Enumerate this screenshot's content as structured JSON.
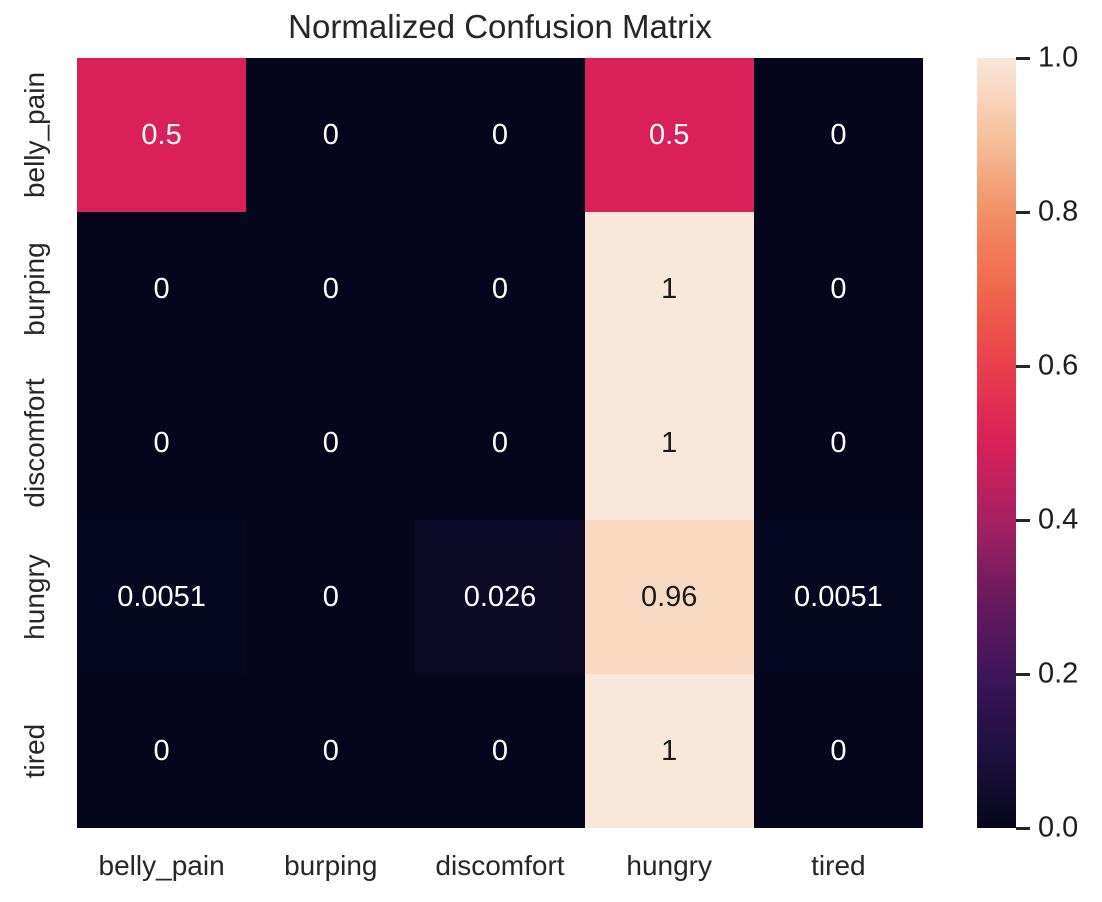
{
  "chart_data": {
    "type": "heatmap",
    "title": "Normalized Confusion Matrix",
    "x_categories": [
      "belly_pain",
      "burping",
      "discomfort",
      "hungry",
      "tired"
    ],
    "y_categories": [
      "belly_pain",
      "burping",
      "discomfort",
      "hungry",
      "tired"
    ],
    "values": [
      [
        0.5,
        0,
        0,
        0.5,
        0
      ],
      [
        0,
        0,
        0,
        1,
        0
      ],
      [
        0,
        0,
        0,
        1,
        0
      ],
      [
        0.0051,
        0,
        0.026,
        0.96,
        0.0051
      ],
      [
        0,
        0,
        0,
        1,
        0
      ]
    ],
    "cell_labels": [
      [
        "0.5",
        "0",
        "0",
        "0.5",
        "0"
      ],
      [
        "0",
        "0",
        "0",
        "1",
        "0"
      ],
      [
        "0",
        "0",
        "0",
        "1",
        "0"
      ],
      [
        "0.0051",
        "0",
        "0.026",
        "0.96",
        "0.0051"
      ],
      [
        "0",
        "0",
        "0",
        "1",
        "0"
      ]
    ],
    "value_range": [
      0,
      1
    ],
    "legend_position": "right",
    "grid": false,
    "colorbar_ticks": [
      {
        "value": 0.0,
        "label": "0.0"
      },
      {
        "value": 0.2,
        "label": "0.2"
      },
      {
        "value": 0.4,
        "label": "0.4"
      },
      {
        "value": 0.6,
        "label": "0.6"
      },
      {
        "value": 0.8,
        "label": "0.8"
      },
      {
        "value": 1.0,
        "label": "1.0"
      }
    ],
    "colormap": {
      "name": "rocket",
      "stops": [
        {
          "t": 0.0,
          "c": "#05061e"
        },
        {
          "t": 0.1,
          "c": "#1f1140"
        },
        {
          "t": 0.2,
          "c": "#3d1459"
        },
        {
          "t": 0.3,
          "c": "#6b1b5e"
        },
        {
          "t": 0.4,
          "c": "#a62161"
        },
        {
          "t": 0.5,
          "c": "#d92058"
        },
        {
          "t": 0.6,
          "c": "#e83f4b"
        },
        {
          "t": 0.7,
          "c": "#f0684c"
        },
        {
          "t": 0.8,
          "c": "#f29066"
        },
        {
          "t": 0.9,
          "c": "#f6c29e"
        },
        {
          "t": 1.0,
          "c": "#f9e8d9"
        }
      ]
    },
    "colors": {
      "background": "#ffffff",
      "title_text": "#262626",
      "axis_text": "#262626",
      "annotation_light": "#ffffff",
      "annotation_dark": "#1a1a1a",
      "tick_mark": "#262626"
    }
  }
}
